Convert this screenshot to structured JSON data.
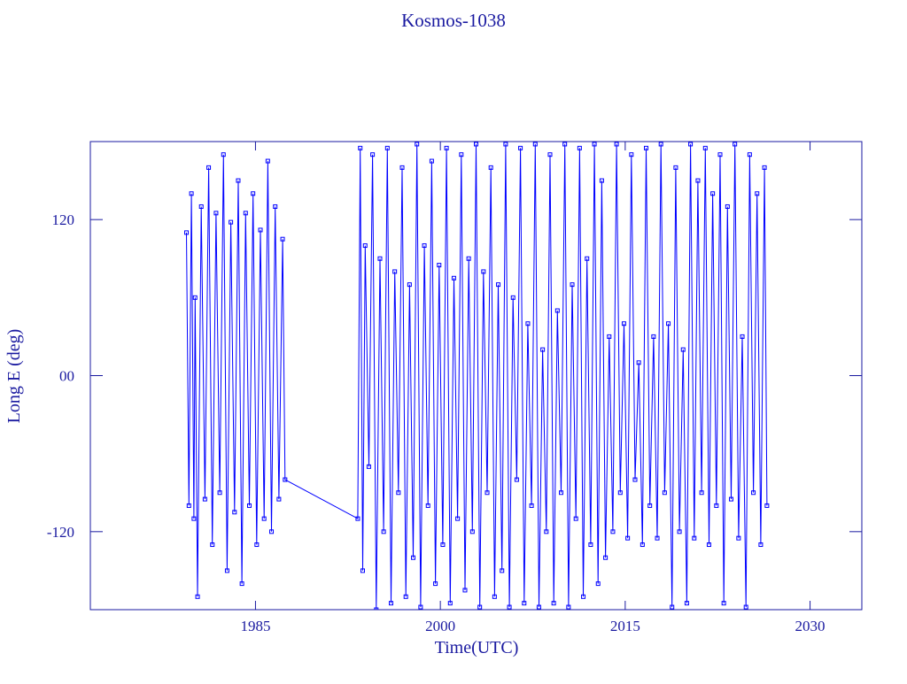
{
  "chart_data": {
    "type": "line",
    "title": "Kosmos-1038",
    "x_label": "Time(UTC)",
    "y_label": "Long E (deg)",
    "xlim": [
      1971.6,
      2034.2
    ],
    "ylim": [
      -180,
      180
    ],
    "xticks": [
      1985,
      2000,
      2015,
      2030
    ],
    "yticks": [
      -120,
      {
        "value": 0,
        "label": "00"
      },
      120
    ],
    "markers": true,
    "series": [
      {
        "name": "Kosmos-1038",
        "color": "#0000ff",
        "x": [
          1979.4,
          1979.6,
          1979.8,
          1980.0,
          1980.1,
          1980.3,
          1980.6,
          1980.9,
          1981.2,
          1981.5,
          1981.8,
          1982.1,
          1982.4,
          1982.7,
          1983.0,
          1983.3,
          1983.6,
          1983.9,
          1984.2,
          1984.5,
          1984.8,
          1985.1,
          1985.4,
          1985.7,
          1986.0,
          1986.3,
          1986.6,
          1986.9,
          1987.2,
          1987.4,
          1993.3,
          1993.5,
          1993.7,
          1993.9,
          1994.2,
          1994.5,
          1994.8,
          1995.1,
          1995.4,
          1995.7,
          1996.0,
          1996.3,
          1996.6,
          1996.9,
          1997.2,
          1997.5,
          1997.8,
          1998.1,
          1998.4,
          1998.7,
          1999.0,
          1999.3,
          1999.6,
          1999.9,
          2000.2,
          2000.5,
          2000.8,
          2001.1,
          2001.4,
          2001.7,
          2002.0,
          2002.3,
          2002.6,
          2002.9,
          2003.2,
          2003.5,
          2003.8,
          2004.1,
          2004.4,
          2004.7,
          2005.0,
          2005.3,
          2005.6,
          2005.9,
          2006.2,
          2006.5,
          2006.8,
          2007.1,
          2007.4,
          2007.7,
          2008.0,
          2008.3,
          2008.6,
          2008.9,
          2009.2,
          2009.5,
          2009.8,
          2010.1,
          2010.4,
          2010.7,
          2011.0,
          2011.3,
          2011.6,
          2011.9,
          2012.2,
          2012.5,
          2012.8,
          2013.1,
          2013.4,
          2013.7,
          2014.0,
          2014.3,
          2014.6,
          2014.9,
          2015.2,
          2015.5,
          2015.8,
          2016.1,
          2016.4,
          2016.7,
          2017.0,
          2017.3,
          2017.6,
          2017.9,
          2018.2,
          2018.5,
          2018.8,
          2019.1,
          2019.4,
          2019.7,
          2020.0,
          2020.3,
          2020.6,
          2020.9,
          2021.2,
          2021.5,
          2021.8,
          2022.1,
          2022.4,
          2022.7,
          2023.0,
          2023.3,
          2023.6,
          2023.9,
          2024.2,
          2024.5,
          2024.8,
          2025.1,
          2025.4,
          2025.7,
          2026.0,
          2026.3,
          2026.5
        ],
        "values": [
          110,
          -100,
          140,
          -110,
          60,
          -170,
          130,
          -95,
          160,
          -130,
          125,
          -90,
          170,
          -150,
          118,
          -105,
          150,
          -160,
          125,
          -100,
          140,
          -130,
          112,
          -110,
          165,
          -120,
          130,
          -95,
          105,
          -80,
          -110,
          175,
          -150,
          100,
          -70,
          170,
          -180,
          90,
          -120,
          175,
          -175,
          80,
          -90,
          160,
          -170,
          70,
          -140,
          178,
          -178,
          100,
          -100,
          165,
          -160,
          85,
          -130,
          175,
          -175,
          75,
          -110,
          170,
          -165,
          90,
          -120,
          178,
          -178,
          80,
          -90,
          160,
          -170,
          70,
          -150,
          178,
          -178,
          60,
          -80,
          175,
          -175,
          40,
          -100,
          178,
          -178,
          20,
          -120,
          170,
          -175,
          50,
          -90,
          178,
          -178,
          70,
          -110,
          175,
          -170,
          90,
          -130,
          178,
          -160,
          150,
          -140,
          30,
          -120,
          178,
          -90,
          40,
          -125,
          170,
          -80,
          10,
          -130,
          175,
          -100,
          30,
          -125,
          178,
          -90,
          40,
          -178,
          160,
          -120,
          20,
          -175,
          178,
          -125,
          150,
          -90,
          175,
          -130,
          140,
          -100,
          170,
          -175,
          130,
          -95,
          178,
          -125,
          30,
          -178,
          170,
          -90,
          140,
          -130,
          160,
          -100
        ]
      }
    ]
  }
}
